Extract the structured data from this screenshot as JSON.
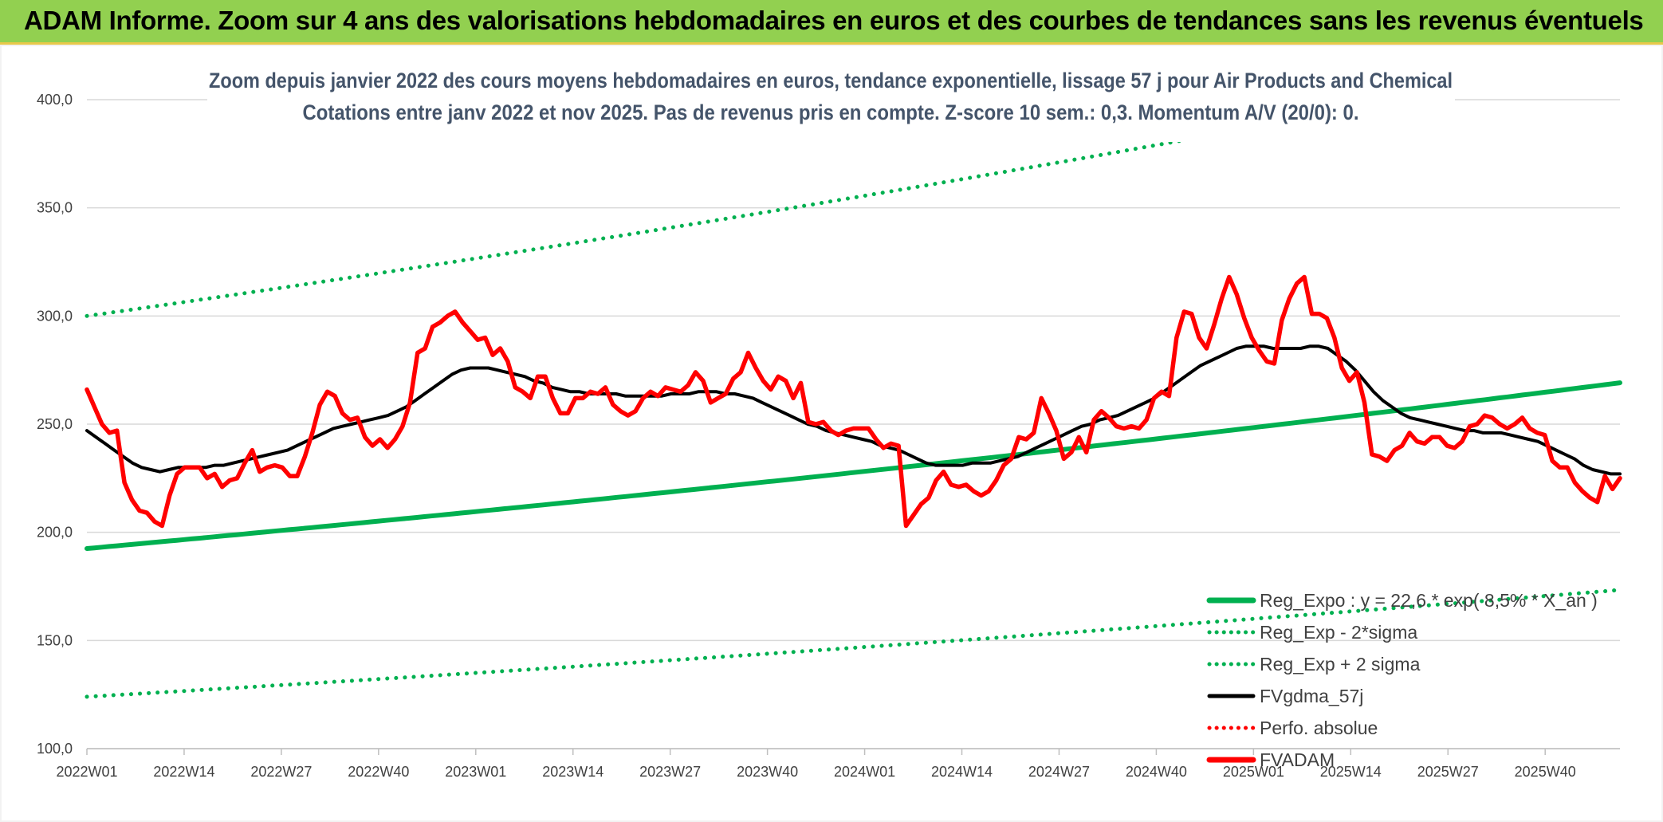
{
  "header": {
    "title": "ADAM Informe. Zoom sur 4 ans des valorisations hebdomadaires en euros et des courbes de tendances sans les revenus éventuels"
  },
  "chart_data": {
    "type": "line",
    "title": "Zoom depuis janvier 2022 des cours moyens hebdomadaires en euros, tendance exponentielle, lissage 57 j pour Air Products and Chemical",
    "subtitle": "Cotations entre janv 2022 et nov 2025. Pas de revenus pris en compte. Z-score 10 sem.: 0,3. Momentum A/V (20/0): 0.",
    "xlabel": "",
    "ylabel": "",
    "ylim": [
      100,
      400
    ],
    "y_ticks": [
      "400,0",
      "350,0",
      "300,0",
      "250,0",
      "200,0",
      "150,0",
      "100,0"
    ],
    "x_ticks": [
      "2022W01",
      "2022W14",
      "2022W27",
      "2022W40",
      "2023W01",
      "2023W14",
      "2023W27",
      "2023W40",
      "2024W01",
      "2024W14",
      "2024W27",
      "2024W40",
      "2025W01",
      "2025W14",
      "2025W27",
      "2025W40"
    ],
    "x_range_weeks": [
      0,
      205
    ],
    "grid": "horizontal",
    "legend_position": "bottom-right",
    "series": [
      {
        "name": "Reg_Expo : y = 22,6 * exp( 8,5% *  X_an )",
        "color": "#00b050",
        "style": "solid",
        "trend": {
          "start": 192.5,
          "growth": 0.085
        }
      },
      {
        "name": "Reg_Exp - 2*sigma",
        "color": "#00b050",
        "style": "dotted",
        "trend": {
          "start": 124,
          "growth": 0.085
        }
      },
      {
        "name": "Reg_Exp + 2 sigma",
        "color": "#00b050",
        "style": "dotted",
        "trend": {
          "start": 300,
          "growth": 0.085
        }
      },
      {
        "name": "FVgdma_57j",
        "color": "#000000",
        "style": "solid",
        "values": [
          247,
          244,
          241,
          238,
          235,
          232,
          230,
          229,
          228,
          229,
          230,
          230,
          230,
          230,
          231,
          231,
          232,
          233,
          234,
          235,
          236,
          237,
          238,
          240,
          242,
          244,
          246,
          248,
          249,
          250,
          251,
          252,
          253,
          254,
          256,
          258,
          261,
          264,
          267,
          270,
          273,
          275,
          276,
          276,
          276,
          275,
          274,
          273,
          272,
          270,
          269,
          267,
          266,
          265,
          265,
          264,
          264,
          264,
          264,
          263,
          263,
          263,
          263,
          263,
          264,
          264,
          264,
          265,
          265,
          265,
          264,
          264,
          263,
          262,
          260,
          258,
          256,
          254,
          252,
          250,
          249,
          247,
          246,
          245,
          244,
          243,
          242,
          240,
          239,
          238,
          236,
          234,
          232,
          231,
          231,
          231,
          231,
          232,
          232,
          232,
          233,
          234,
          235,
          237,
          239,
          241,
          243,
          245,
          247,
          249,
          250,
          252,
          253,
          254,
          256,
          258,
          260,
          262,
          265,
          268,
          271,
          274,
          277,
          279,
          281,
          283,
          285,
          286,
          286,
          286,
          285,
          285,
          285,
          285,
          286,
          286,
          285,
          282,
          279,
          275,
          270,
          265,
          261,
          258,
          255,
          253,
          252,
          251,
          250,
          249,
          248,
          247,
          247,
          246,
          246,
          246,
          245,
          244,
          243,
          242,
          240,
          238,
          236,
          234,
          231,
          229,
          228,
          227,
          227
        ]
      },
      {
        "name": "Perfo. absolue",
        "color": "#ff0000",
        "style": "dotted",
        "values": []
      },
      {
        "name": "FVADAM",
        "color": "#ff0000",
        "style": "solid",
        "values": [
          266,
          258,
          250,
          246,
          247,
          223,
          215,
          210,
          209,
          205,
          203,
          217,
          227,
          230,
          230,
          230,
          225,
          227,
          221,
          224,
          225,
          232,
          238,
          228,
          230,
          231,
          230,
          226,
          226,
          235,
          246,
          259,
          265,
          263,
          255,
          252,
          253,
          244,
          240,
          243,
          239,
          243,
          249,
          260,
          283,
          285,
          295,
          297,
          300,
          302,
          297,
          293,
          289,
          290,
          282,
          285,
          279,
          267,
          265,
          262,
          272,
          272,
          262,
          255,
          255,
          262,
          262,
          265,
          264,
          267,
          259,
          256,
          254,
          256,
          262,
          265,
          263,
          267,
          266,
          265,
          268,
          274,
          270,
          260,
          262,
          264,
          271,
          274,
          283,
          276,
          270,
          266,
          272,
          270,
          262,
          269,
          251,
          250,
          251,
          247,
          245,
          247,
          248,
          248,
          248,
          243,
          239,
          241,
          240,
          203,
          208,
          213,
          216,
          224,
          228,
          222,
          221,
          222,
          219,
          217,
          219,
          224,
          231,
          234,
          244,
          243,
          246,
          262,
          255,
          247,
          234,
          237,
          244,
          237,
          252,
          256,
          253,
          249,
          248,
          249,
          248,
          252,
          262,
          265,
          263,
          290,
          302,
          301,
          290,
          285,
          296,
          308,
          318,
          310,
          299,
          290,
          284,
          279,
          278,
          298,
          308,
          315,
          318,
          301,
          301,
          299,
          290,
          276,
          270,
          274,
          260,
          236,
          235,
          233,
          238,
          240,
          246,
          242,
          241,
          244,
          244,
          240,
          239,
          242,
          249,
          250,
          254,
          253,
          250,
          248,
          250,
          253,
          248,
          246,
          245,
          233,
          230,
          230,
          223,
          219,
          216,
          214,
          226,
          220,
          225
        ]
      }
    ]
  }
}
